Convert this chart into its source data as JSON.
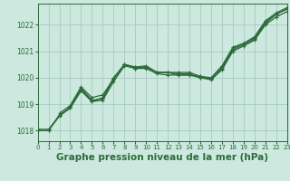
{
  "background_color": "#cce8df",
  "plot_bg_color": "#cce8df",
  "grid_color": "#a8ccbf",
  "line_color": "#2d6b3a",
  "xlabel": "Graphe pression niveau de la mer (hPa)",
  "xlabel_fontsize": 7.5,
  "ylim": [
    1017.6,
    1022.8
  ],
  "xlim": [
    0,
    23
  ],
  "yticks": [
    1018,
    1019,
    1020,
    1021,
    1022
  ],
  "xticks": [
    0,
    1,
    2,
    3,
    4,
    5,
    6,
    7,
    8,
    9,
    10,
    11,
    12,
    13,
    14,
    15,
    16,
    17,
    18,
    19,
    20,
    21,
    22,
    23
  ],
  "series": [
    {
      "x": [
        0,
        1,
        2,
        3,
        4,
        5,
        6,
        7,
        8,
        9,
        10,
        11,
        12,
        13,
        14,
        15,
        16,
        17,
        18,
        19,
        20,
        21,
        22,
        23
      ],
      "y": [
        1018.0,
        1018.0,
        1018.55,
        1018.9,
        1019.6,
        1019.15,
        1019.2,
        1019.95,
        1020.5,
        1020.4,
        1020.45,
        1020.2,
        1020.2,
        1020.15,
        1020.15,
        1020.0,
        1019.97,
        1020.35,
        1021.05,
        1021.25,
        1021.45,
        1022.05,
        1022.4,
        1022.6
      ]
    },
    {
      "x": [
        0,
        1,
        2,
        3,
        4,
        5,
        6,
        7,
        8,
        9,
        10,
        11,
        12,
        13,
        14,
        15,
        16,
        17,
        18,
        19,
        20,
        21,
        22,
        23
      ],
      "y": [
        1018.0,
        1018.0,
        1018.6,
        1018.85,
        1019.55,
        1019.1,
        1019.25,
        1020.0,
        1020.5,
        1020.35,
        1020.4,
        1020.2,
        1020.2,
        1020.1,
        1020.1,
        1020.05,
        1019.95,
        1020.4,
        1021.1,
        1021.3,
        1021.5,
        1022.1,
        1022.4,
        1022.6
      ]
    },
    {
      "x": [
        2,
        3,
        4,
        5,
        6,
        7,
        8,
        9,
        10,
        11,
        12,
        13,
        14,
        15,
        16,
        17,
        18,
        19,
        20,
        21,
        22,
        23
      ],
      "y": [
        1018.65,
        1018.95,
        1019.65,
        1019.25,
        1019.35,
        1019.95,
        1020.5,
        1020.4,
        1020.4,
        1020.2,
        1020.2,
        1020.2,
        1020.2,
        1020.05,
        1020.0,
        1020.45,
        1021.15,
        1021.3,
        1021.55,
        1022.15,
        1022.45,
        1022.65
      ]
    },
    {
      "x": [
        0,
        1,
        2,
        3,
        4,
        5,
        6,
        7,
        8,
        9,
        10,
        11,
        12,
        13,
        14,
        15,
        16,
        17,
        18,
        19,
        20,
        21,
        22,
        23
      ],
      "y": [
        1018.05,
        1018.05,
        1018.55,
        1018.85,
        1019.5,
        1019.1,
        1019.15,
        1019.85,
        1020.45,
        1020.35,
        1020.35,
        1020.15,
        1020.1,
        1020.1,
        1020.1,
        1020.0,
        1019.92,
        1020.3,
        1021.0,
        1021.2,
        1021.42,
        1022.0,
        1022.3,
        1022.5
      ]
    }
  ],
  "marker": "+",
  "markersize": 3.5,
  "linewidth": 0.9
}
